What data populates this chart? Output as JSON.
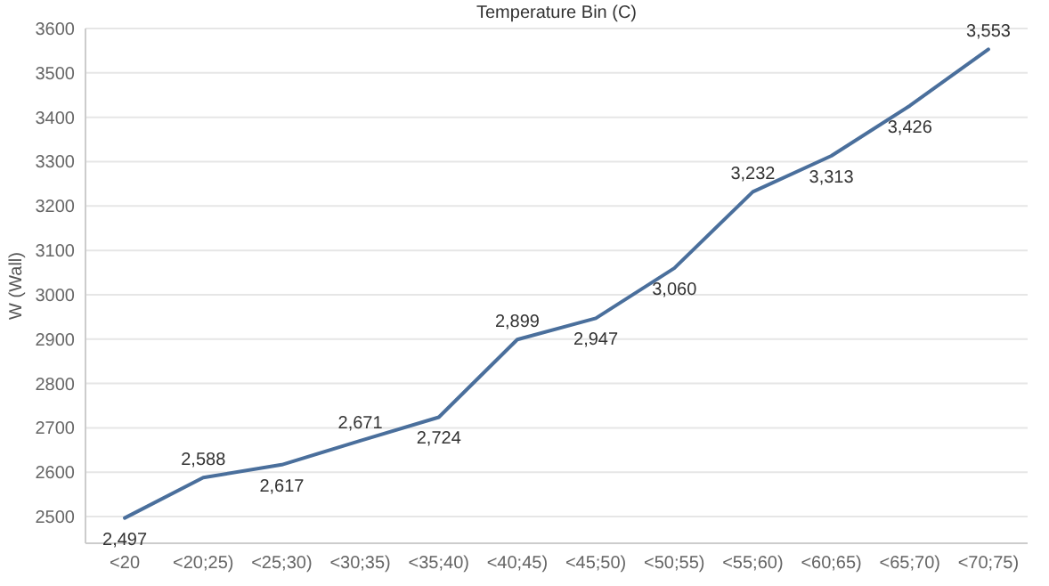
{
  "chart_data": {
    "type": "line",
    "title": "Temperature Bin (C)",
    "ylabel": "W (Wall)",
    "categories": [
      "<20",
      "<20;25)",
      "<25;30)",
      "<30;35)",
      "<35;40)",
      "<40;45)",
      "<45;50)",
      "<50;55)",
      "<55;60)",
      "<60;65)",
      "<65;70)",
      "<70;75)"
    ],
    "series": [
      {
        "color": "#4a6f9c",
        "values": [
          2497,
          2588,
          2617,
          2671,
          2724,
          2899,
          2947,
          3060,
          3232,
          3313,
          3426,
          3553
        ],
        "value_labels": [
          "2,497",
          "2,588",
          "2,617",
          "2,671",
          "2,724",
          "2,899",
          "2,947",
          "3,060",
          "3,232",
          "3,313",
          "3,426",
          "3,553"
        ]
      }
    ],
    "ylim": [
      2440,
      3600
    ],
    "yticks": [
      2500,
      2600,
      2700,
      2800,
      2900,
      3000,
      3100,
      3200,
      3300,
      3400,
      3500,
      3600
    ],
    "grid": "y",
    "marker": "none",
    "line_style": "solid"
  }
}
